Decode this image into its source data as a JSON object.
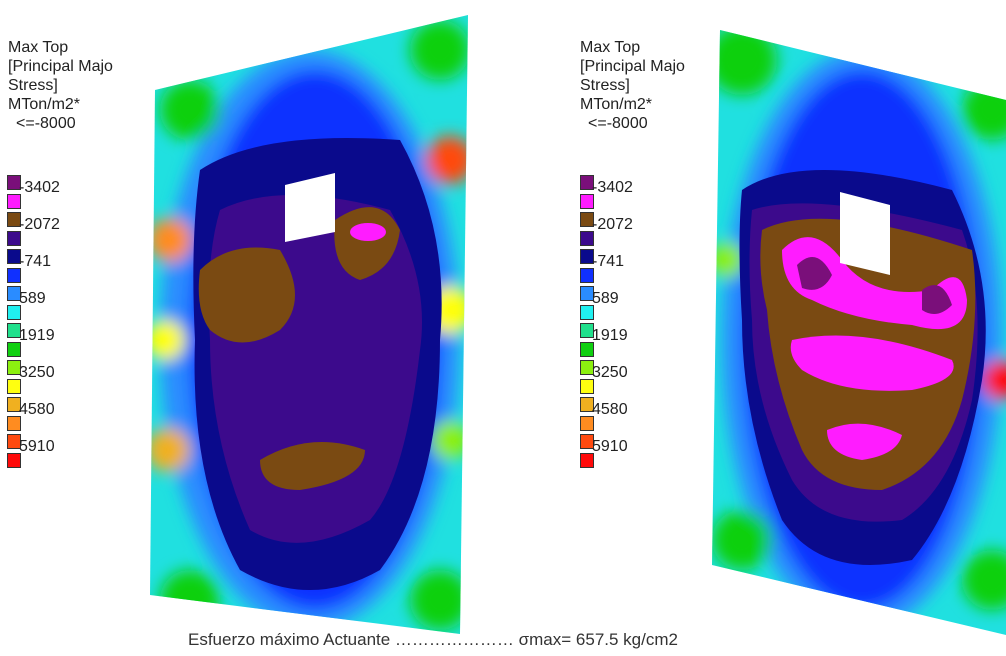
{
  "legend_left": {
    "title_lines": [
      "Max Top",
      "[Principal Majo",
      "Stress]",
      "MTon/m2*"
    ],
    "first_label": "<=-8000",
    "ticks": [
      "-3402",
      "-2072",
      "-741",
      "589",
      "1919",
      "3250",
      "4580",
      "5910"
    ],
    "colors": [
      "#7a0f7a",
      "#ff1cff",
      "#7a4a12",
      "#3c0a8c",
      "#0a0a8c",
      "#1030ff",
      "#2a8cff",
      "#20f0f0",
      "#20e08c",
      "#10d010",
      "#8cf010",
      "#ffff10",
      "#f0b020",
      "#ff8c20",
      "#ff4a10",
      "#ff0a0a"
    ]
  },
  "legend_right": {
    "title_lines": [
      "Max Top",
      "[Principal Majo",
      "Stress]",
      "MTon/m2*"
    ],
    "first_label": "<=-8000",
    "ticks": [
      "-3402",
      "-2072",
      "-741",
      "589",
      "1919",
      "3250",
      "4580",
      "5910"
    ],
    "colors": [
      "#7a0f7a",
      "#ff1cff",
      "#7a4a12",
      "#3c0a8c",
      "#0a0a8c",
      "#1030ff",
      "#2a8cff",
      "#20f0f0",
      "#20e08c",
      "#10d010",
      "#8cf010",
      "#ffff10",
      "#f0b020",
      "#ff8c20",
      "#ff4a10",
      "#ff0a0a"
    ]
  },
  "caption": "Esfuerzo máximo Actuante ………………… σmax= 657.5 kg/cm2"
}
